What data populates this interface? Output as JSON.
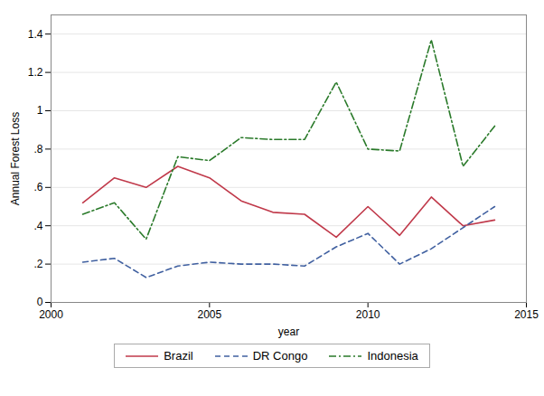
{
  "chart_data": {
    "type": "line",
    "xlabel": "year",
    "ylabel": "Annual Forest Loss",
    "x": [
      2001,
      2002,
      2003,
      2004,
      2005,
      2006,
      2007,
      2008,
      2009,
      2010,
      2011,
      2012,
      2013,
      2014
    ],
    "series": [
      {
        "name": "Brazil",
        "color": "#c0394a",
        "line_style": "solid",
        "values": [
          0.52,
          0.65,
          0.6,
          0.71,
          0.65,
          0.53,
          0.47,
          0.46,
          0.34,
          0.5,
          0.35,
          0.55,
          0.4,
          0.43
        ]
      },
      {
        "name": "DR Congo",
        "color": "#4060a0",
        "line_style": "dashed",
        "values": [
          0.21,
          0.23,
          0.13,
          0.19,
          0.21,
          0.2,
          0.2,
          0.19,
          0.29,
          0.36,
          0.2,
          0.28,
          0.39,
          0.5
        ]
      },
      {
        "name": "Indonesia",
        "color": "#2a7a2a",
        "line_style": "dashdot",
        "values": [
          0.46,
          0.52,
          0.33,
          0.76,
          0.74,
          0.86,
          0.85,
          0.85,
          1.15,
          0.8,
          0.79,
          1.37,
          0.71,
          0.92
        ]
      }
    ],
    "xlim": [
      2000,
      2015
    ],
    "xticks": [
      2000,
      2005,
      2010,
      2015
    ],
    "ylim": [
      0,
      1.5
    ],
    "yticks": [
      0,
      {
        "value": 0.2,
        "label": ".2"
      },
      {
        "value": 0.4,
        "label": ".4"
      },
      {
        "value": 0.6,
        "label": ".6"
      },
      {
        "value": 0.8,
        "label": ".8"
      },
      1,
      1.2,
      1.4
    ],
    "grid": true,
    "legend": "bottom"
  }
}
